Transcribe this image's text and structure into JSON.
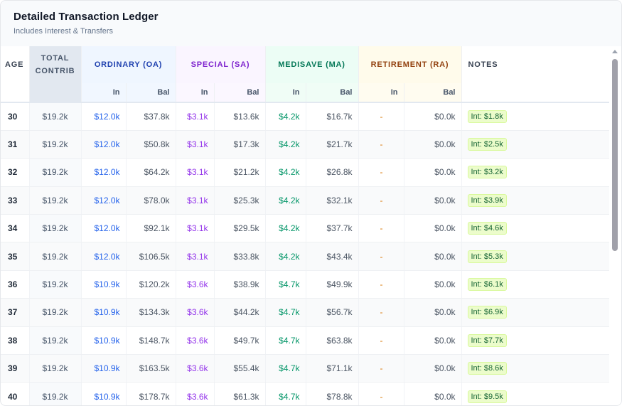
{
  "header": {
    "title": "Detailed Transaction Ledger",
    "subtitle": "Includes Interest & Transfers"
  },
  "columns": {
    "age": "AGE",
    "contrib_line1": "TOTAL",
    "contrib_line2": "CONTRIB",
    "oa": "ORDINARY (OA)",
    "sa": "SPECIAL (SA)",
    "ma": "MEDISAVE (MA)",
    "ra": "RETIREMENT (RA)",
    "notes": "NOTES",
    "sub_in": "In",
    "sub_bal": "Bal"
  },
  "colors": {
    "oa": "#2563eb",
    "sa": "#9333ea",
    "ma": "#059669",
    "ra": "#d97706",
    "note_pill_bg": "#ecfccb"
  },
  "rows": [
    {
      "age": "30",
      "contrib": "$19.2k",
      "oa_in": "$12.0k",
      "oa_bal": "$37.8k",
      "sa_in": "$3.1k",
      "sa_bal": "$13.6k",
      "ma_in": "$4.2k",
      "ma_bal": "$16.7k",
      "ra_in": "-",
      "ra_bal": "$0.0k",
      "note": "Int: $1.8k"
    },
    {
      "age": "31",
      "contrib": "$19.2k",
      "oa_in": "$12.0k",
      "oa_bal": "$50.8k",
      "sa_in": "$3.1k",
      "sa_bal": "$17.3k",
      "ma_in": "$4.2k",
      "ma_bal": "$21.7k",
      "ra_in": "-",
      "ra_bal": "$0.0k",
      "note": "Int: $2.5k"
    },
    {
      "age": "32",
      "contrib": "$19.2k",
      "oa_in": "$12.0k",
      "oa_bal": "$64.2k",
      "sa_in": "$3.1k",
      "sa_bal": "$21.2k",
      "ma_in": "$4.2k",
      "ma_bal": "$26.8k",
      "ra_in": "-",
      "ra_bal": "$0.0k",
      "note": "Int: $3.2k"
    },
    {
      "age": "33",
      "contrib": "$19.2k",
      "oa_in": "$12.0k",
      "oa_bal": "$78.0k",
      "sa_in": "$3.1k",
      "sa_bal": "$25.3k",
      "ma_in": "$4.2k",
      "ma_bal": "$32.1k",
      "ra_in": "-",
      "ra_bal": "$0.0k",
      "note": "Int: $3.9k"
    },
    {
      "age": "34",
      "contrib": "$19.2k",
      "oa_in": "$12.0k",
      "oa_bal": "$92.1k",
      "sa_in": "$3.1k",
      "sa_bal": "$29.5k",
      "ma_in": "$4.2k",
      "ma_bal": "$37.7k",
      "ra_in": "-",
      "ra_bal": "$0.0k",
      "note": "Int: $4.6k"
    },
    {
      "age": "35",
      "contrib": "$19.2k",
      "oa_in": "$12.0k",
      "oa_bal": "$106.5k",
      "sa_in": "$3.1k",
      "sa_bal": "$33.8k",
      "ma_in": "$4.2k",
      "ma_bal": "$43.4k",
      "ra_in": "-",
      "ra_bal": "$0.0k",
      "note": "Int: $5.3k"
    },
    {
      "age": "36",
      "contrib": "$19.2k",
      "oa_in": "$10.9k",
      "oa_bal": "$120.2k",
      "sa_in": "$3.6k",
      "sa_bal": "$38.9k",
      "ma_in": "$4.7k",
      "ma_bal": "$49.9k",
      "ra_in": "-",
      "ra_bal": "$0.0k",
      "note": "Int: $6.1k"
    },
    {
      "age": "37",
      "contrib": "$19.2k",
      "oa_in": "$10.9k",
      "oa_bal": "$134.3k",
      "sa_in": "$3.6k",
      "sa_bal": "$44.2k",
      "ma_in": "$4.7k",
      "ma_bal": "$56.7k",
      "ra_in": "-",
      "ra_bal": "$0.0k",
      "note": "Int: $6.9k"
    },
    {
      "age": "38",
      "contrib": "$19.2k",
      "oa_in": "$10.9k",
      "oa_bal": "$148.7k",
      "sa_in": "$3.6k",
      "sa_bal": "$49.7k",
      "ma_in": "$4.7k",
      "ma_bal": "$63.8k",
      "ra_in": "-",
      "ra_bal": "$0.0k",
      "note": "Int: $7.7k"
    },
    {
      "age": "39",
      "contrib": "$19.2k",
      "oa_in": "$10.9k",
      "oa_bal": "$163.5k",
      "sa_in": "$3.6k",
      "sa_bal": "$55.4k",
      "ma_in": "$4.7k",
      "ma_bal": "$71.1k",
      "ra_in": "-",
      "ra_bal": "$0.0k",
      "note": "Int: $8.6k"
    },
    {
      "age": "40",
      "contrib": "$19.2k",
      "oa_in": "$10.9k",
      "oa_bal": "$178.7k",
      "sa_in": "$3.6k",
      "sa_bal": "$61.3k",
      "ma_in": "$4.7k",
      "ma_bal": "$78.8k",
      "ra_in": "-",
      "ra_bal": "$0.0k",
      "note": "Int: $9.5k"
    }
  ]
}
